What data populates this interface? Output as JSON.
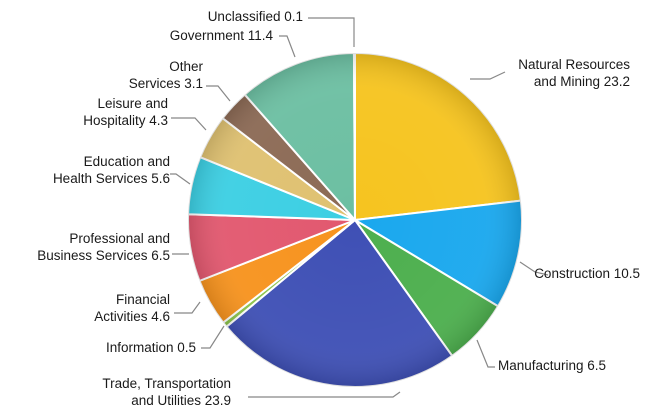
{
  "chart_data": {
    "type": "pie",
    "title": "",
    "start": "12 o'clock",
    "direction": "clockwise",
    "slices": [
      {
        "label": "Natural Resources\nand Mining 23.2",
        "value": 23.2,
        "color": "#f6c41f"
      },
      {
        "label": "Construction 10.5",
        "value": 10.5,
        "color": "#1aa8ee"
      },
      {
        "label": "Manufacturing 6.5",
        "value": 6.5,
        "color": "#4daf4e"
      },
      {
        "label": "Trade, Transportation\nand Utilities 23.9",
        "value": 23.9,
        "color": "#3f50b5"
      },
      {
        "label": "Information 0.5",
        "value": 0.5,
        "color": "#8bc34a"
      },
      {
        "label": "Financial\nActivities 4.6",
        "value": 4.6,
        "color": "#f7931e"
      },
      {
        "label": "Professional and\nBusiness Services 6.5",
        "value": 6.5,
        "color": "#e2586f"
      },
      {
        "label": "Education and\nHealth Services 5.6",
        "value": 5.6,
        "color": "#3ccfe3"
      },
      {
        "label": "Leisure and\nHospitality 4.3",
        "value": 4.3,
        "color": "#dfc171"
      },
      {
        "label": "Other\nServices 3.1",
        "value": 3.1,
        "color": "#8c6a55"
      },
      {
        "label": "Government 11.4",
        "value": 11.4,
        "color": "#6cbfa2"
      },
      {
        "label": "Unclassified 0.1",
        "value": 0.1,
        "color": "#cccccc"
      }
    ]
  }
}
